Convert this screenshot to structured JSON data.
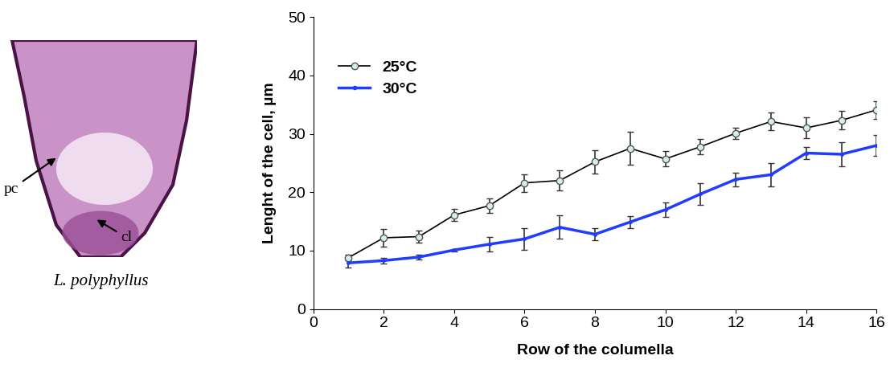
{
  "chart_data": {
    "type": "line",
    "x_label": "Row of the columella",
    "y_label": "Lenght of the cell, µm",
    "x": [
      1,
      2,
      3,
      4,
      5,
      6,
      7,
      8,
      9,
      10,
      11,
      12,
      13,
      14,
      15,
      16
    ],
    "series": [
      {
        "name": "25°C",
        "color": "#000000",
        "marker": "circle",
        "values": [
          8.8,
          12.2,
          12.4,
          16.1,
          17.7,
          21.6,
          22.0,
          25.2,
          27.5,
          25.7,
          27.8,
          30.1,
          32.1,
          31.0,
          32.3,
          34.1
        ],
        "errors": [
          0.5,
          1.5,
          1.0,
          1.0,
          1.3,
          1.5,
          1.7,
          2.0,
          2.8,
          1.3,
          1.3,
          1.0,
          1.5,
          1.8,
          1.6,
          1.5
        ]
      },
      {
        "name": "30°C",
        "color": "#1f3cff",
        "marker": "dot",
        "values": [
          7.9,
          8.3,
          8.9,
          10.1,
          11.1,
          12.0,
          14.0,
          12.8,
          14.9,
          17.0,
          19.7,
          22.2,
          23.0,
          26.7,
          26.5,
          28.0
        ],
        "errors": [
          0.8,
          0.5,
          0.4,
          0.2,
          1.2,
          1.8,
          2.0,
          1.0,
          1.0,
          1.2,
          1.8,
          1.2,
          2.0,
          1.0,
          2.0,
          1.8
        ]
      }
    ],
    "xlim": [
      0,
      16
    ],
    "xticks": [
      0,
      2,
      4,
      6,
      8,
      10,
      12,
      14,
      16
    ],
    "ylim": [
      0,
      50
    ],
    "yticks": [
      0,
      10,
      20,
      30,
      40,
      50
    ],
    "legend": "upper left",
    "grid": false
  },
  "image_panel": {
    "labels": [
      "pc",
      "cl"
    ],
    "caption": "L. polyphyllus"
  }
}
